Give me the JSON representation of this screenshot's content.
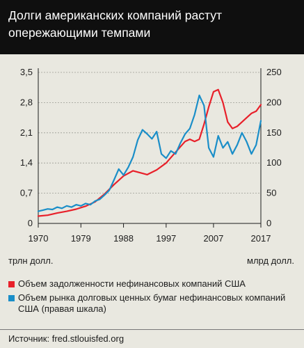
{
  "header": {
    "title": "Долги американских компаний растут опережающими темпами"
  },
  "units": {
    "left": "трлн долл.",
    "right": "млрд долл."
  },
  "legend": [
    {
      "label": "Объем задолженности нефинансовых компаний США",
      "color": "#e8202a"
    },
    {
      "label": "Объем рынка долговых ценных бумаг нефинансовых компаний США (правая шкала)",
      "color": "#1a8ec8"
    }
  ],
  "source": "Источник: fred.stlouisfed.org",
  "chart_data": {
    "type": "line",
    "x_tick_labels": [
      "1970",
      "1979",
      "1988",
      "1997",
      "2007",
      "2017"
    ],
    "x_ticks": [
      1970,
      1979,
      1988,
      1997,
      2007,
      2017
    ],
    "xlim": [
      1970,
      2017
    ],
    "y_left_tick_labels": [
      "0",
      "0,7",
      "1,4",
      "2,1",
      "2,8",
      "3,5"
    ],
    "y_left_ticks": [
      0,
      0.7,
      1.4,
      2.1,
      2.8,
      3.5
    ],
    "ylim_left": [
      0,
      3.5
    ],
    "y_right_tick_labels": [
      "0",
      "50",
      "100",
      "150",
      "200",
      "250"
    ],
    "y_right_ticks": [
      0,
      50,
      100,
      150,
      200,
      250
    ],
    "ylim_right": [
      0,
      250
    ],
    "grid": true,
    "series": [
      {
        "name": "Объем задолженности нефинансовых компаний США",
        "axis": "left",
        "color": "#e8202a",
        "points": [
          [
            1970,
            0.17
          ],
          [
            1972,
            0.19
          ],
          [
            1974,
            0.24
          ],
          [
            1976,
            0.28
          ],
          [
            1978,
            0.33
          ],
          [
            1980,
            0.4
          ],
          [
            1982,
            0.5
          ],
          [
            1984,
            0.68
          ],
          [
            1986,
            0.9
          ],
          [
            1988,
            1.1
          ],
          [
            1990,
            1.22
          ],
          [
            1992,
            1.16
          ],
          [
            1993,
            1.13
          ],
          [
            1995,
            1.24
          ],
          [
            1997,
            1.4
          ],
          [
            1999,
            1.65
          ],
          [
            2001,
            1.9
          ],
          [
            2002,
            1.95
          ],
          [
            2003,
            1.9
          ],
          [
            2004,
            1.95
          ],
          [
            2005,
            2.3
          ],
          [
            2006,
            2.7
          ],
          [
            2007,
            3.05
          ],
          [
            2008,
            3.1
          ],
          [
            2009,
            2.8
          ],
          [
            2010,
            2.35
          ],
          [
            2011,
            2.2
          ],
          [
            2012,
            2.25
          ],
          [
            2013,
            2.35
          ],
          [
            2014,
            2.45
          ],
          [
            2015,
            2.55
          ],
          [
            2016,
            2.6
          ],
          [
            2017,
            2.75
          ]
        ]
      },
      {
        "name": "Объем рынка долговых ценных бумаг нефинансовых компаний США (правая шкала)",
        "axis": "right",
        "color": "#1a8ec8",
        "points": [
          [
            1970,
            20
          ],
          [
            1971,
            22
          ],
          [
            1972,
            24
          ],
          [
            1973,
            23
          ],
          [
            1974,
            27
          ],
          [
            1975,
            25
          ],
          [
            1976,
            29
          ],
          [
            1977,
            27
          ],
          [
            1978,
            31
          ],
          [
            1979,
            29
          ],
          [
            1980,
            33
          ],
          [
            1981,
            31
          ],
          [
            1982,
            37
          ],
          [
            1983,
            40
          ],
          [
            1984,
            47
          ],
          [
            1985,
            55
          ],
          [
            1986,
            72
          ],
          [
            1987,
            90
          ],
          [
            1988,
            80
          ],
          [
            1989,
            93
          ],
          [
            1990,
            110
          ],
          [
            1991,
            138
          ],
          [
            1992,
            155
          ],
          [
            1993,
            148
          ],
          [
            1994,
            140
          ],
          [
            1995,
            152
          ],
          [
            1996,
            115
          ],
          [
            1997,
            108
          ],
          [
            1998,
            120
          ],
          [
            1999,
            115
          ],
          [
            2000,
            133
          ],
          [
            2001,
            148
          ],
          [
            2002,
            157
          ],
          [
            2003,
            180
          ],
          [
            2004,
            212
          ],
          [
            2005,
            195
          ],
          [
            2006,
            125
          ],
          [
            2007,
            110
          ],
          [
            2008,
            145
          ],
          [
            2009,
            125
          ],
          [
            2010,
            135
          ],
          [
            2011,
            115
          ],
          [
            2012,
            130
          ],
          [
            2013,
            150
          ],
          [
            2014,
            135
          ],
          [
            2015,
            115
          ],
          [
            2016,
            130
          ],
          [
            2017,
            170
          ]
        ]
      }
    ]
  }
}
